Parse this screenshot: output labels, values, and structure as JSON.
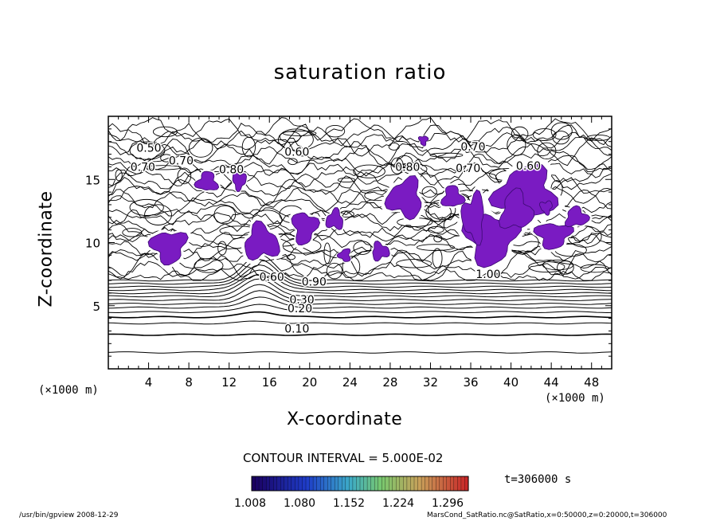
{
  "chart_data": {
    "type": "contour",
    "title": "saturation ratio",
    "xlabel": "X-coordinate",
    "ylabel": "Z-coordinate",
    "x_unit": "(×1000 m)",
    "z_unit": "(×1000 m)",
    "xlim": [
      0,
      50
    ],
    "ylim": [
      0,
      20
    ],
    "x_ticks": [
      "4",
      "8",
      "12",
      "16",
      "20",
      "24",
      "28",
      "32",
      "36",
      "40",
      "44",
      "48"
    ],
    "y_ticks": [
      "5",
      "10",
      "15"
    ],
    "contour_interval": "CONTOUR INTERVAL = 5.000E-02",
    "contour_labels": [
      "0.50",
      "0.60",
      "0.70",
      "0.70",
      "0.80",
      "0.70",
      "0.70",
      "0.80",
      "0.60",
      "0.60",
      "0.90",
      "1.00",
      "0.30",
      "0.20",
      "0.10"
    ],
    "shading_threshold": 1.0,
    "colorbar_ticks": [
      "1.008",
      "1.080",
      "1.152",
      "1.224",
      "1.296"
    ],
    "time_label": "t=306000 s",
    "footer_left": "/usr/bin/gpview  2008-12-29",
    "footer_right": "MarsCond_SatRatio.nc@SatRatio,x=0:50000,z=0:20000,t=306000",
    "colors": {
      "fill": "#7a1bc2",
      "line": "#000000",
      "colorbar_low": "#1a0060",
      "colorbar_mid": "#7fcf6e",
      "colorbar_high": "#c4322a"
    }
  }
}
